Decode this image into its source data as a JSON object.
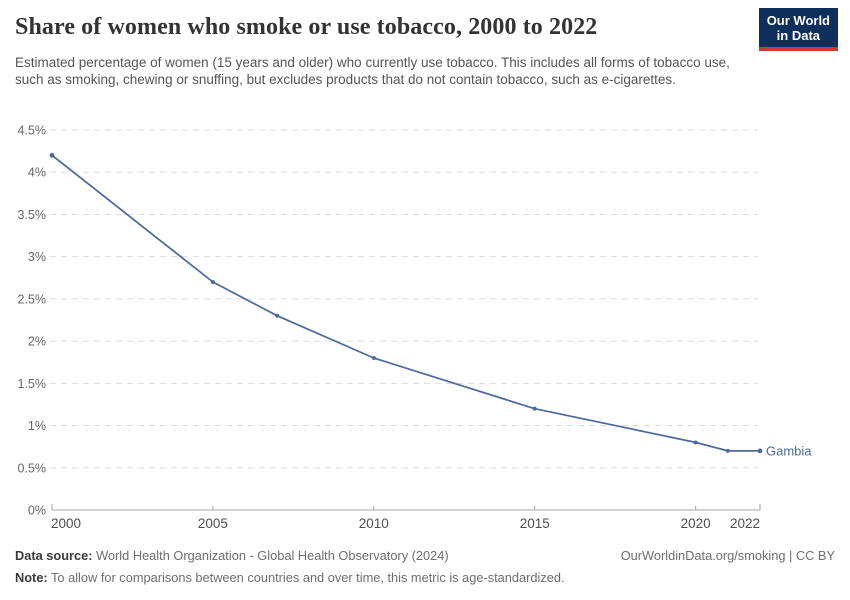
{
  "header": {
    "title": "Share of women who smoke or use tobacco, 2000 to 2022",
    "subtitle": "Estimated percentage of women (15 years and older) who currently use tobacco. This includes all forms of tobacco use, such as smoking, chewing or snuffing, but excludes products that do not contain tobacco, such as e-cigarettes.",
    "logo": {
      "line1": "Our World",
      "line2": "in Data",
      "background": "#0e2e5c",
      "stripe": "#cb3b31",
      "text_color": "#ffffff"
    }
  },
  "chart_data": {
    "type": "line",
    "title": "Share of women who smoke or use tobacco, 2000 to 2022",
    "series": [
      {
        "name": "Gambia",
        "color": "#4c6a9c",
        "points": [
          {
            "year": 2000,
            "value": 4.2
          },
          {
            "year": 2005,
            "value": 2.7
          },
          {
            "year": 2007,
            "value": 2.3
          },
          {
            "year": 2010,
            "value": 1.8
          },
          {
            "year": 2015,
            "value": 1.2
          },
          {
            "year": 2020,
            "value": 0.8
          },
          {
            "year": 2021,
            "value": 0.7
          },
          {
            "year": 2022,
            "value": 0.7
          }
        ]
      }
    ],
    "xlim": [
      2000,
      2022
    ],
    "ylim": [
      0,
      4.5
    ],
    "x_ticks": [
      2000,
      2005,
      2010,
      2015,
      2020,
      2022
    ],
    "x_tick_labels": [
      "2000",
      "2005",
      "2010",
      "2015",
      "2020",
      "2022"
    ],
    "y_ticks": [
      0,
      0.5,
      1,
      1.5,
      2,
      2.5,
      3,
      3.5,
      4,
      4.5
    ],
    "y_tick_labels": [
      "0%",
      "0.5%",
      "1%",
      "1.5%",
      "2%",
      "2.5%",
      "3%",
      "3.5%",
      "4%",
      "4.5%"
    ],
    "grid": "horizontal-dashed",
    "gridline_color": "#dcdcdc",
    "axis_color": "#a5a5a5",
    "y_label_color": "#666666",
    "x_label_color": "#4f4f4f",
    "legend_position": "end-of-line-label"
  },
  "footer": {
    "data_source_label": "Data source:",
    "data_source_text": " World Health Organization - Global Health Observatory (2024)",
    "note_label": "Note:",
    "note_text": " To allow for comparisons between countries and over time, this metric is age-standardized.",
    "link": "OurWorldinData.org/smoking | CC BY"
  }
}
